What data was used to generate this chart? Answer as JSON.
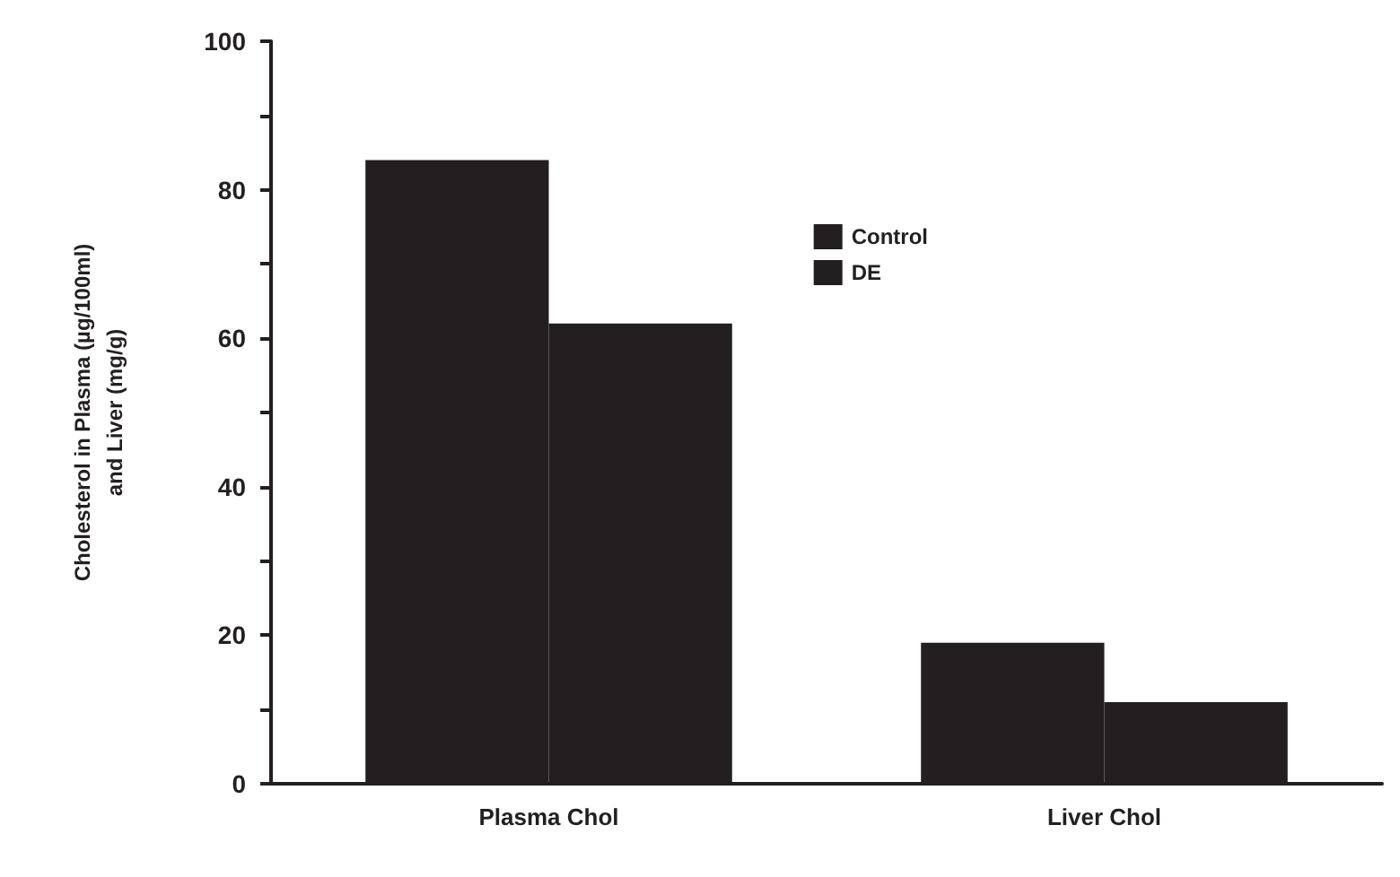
{
  "chart_data": {
    "type": "bar",
    "ylabel": "Cholesterol in Plasma (µg/100ml)\nand Liver (mg/g)",
    "categories": [
      "Plasma Chol",
      "Liver Chol"
    ],
    "series": [
      {
        "name": "Control",
        "color": "#231f20",
        "values": [
          84,
          19
        ]
      },
      {
        "name": "DE",
        "color": "#231f20",
        "values": [
          62,
          11
        ]
      }
    ],
    "ylim": [
      0,
      100
    ],
    "yticks": [
      0,
      {
        "value": 10,
        "label": null
      },
      20,
      {
        "value": 30,
        "label": null
      },
      40,
      {
        "value": 50,
        "label": null
      },
      60,
      {
        "value": 70,
        "label": null
      },
      80,
      {
        "value": 90,
        "label": null
      },
      100
    ],
    "grid": false,
    "legend": "top right"
  }
}
